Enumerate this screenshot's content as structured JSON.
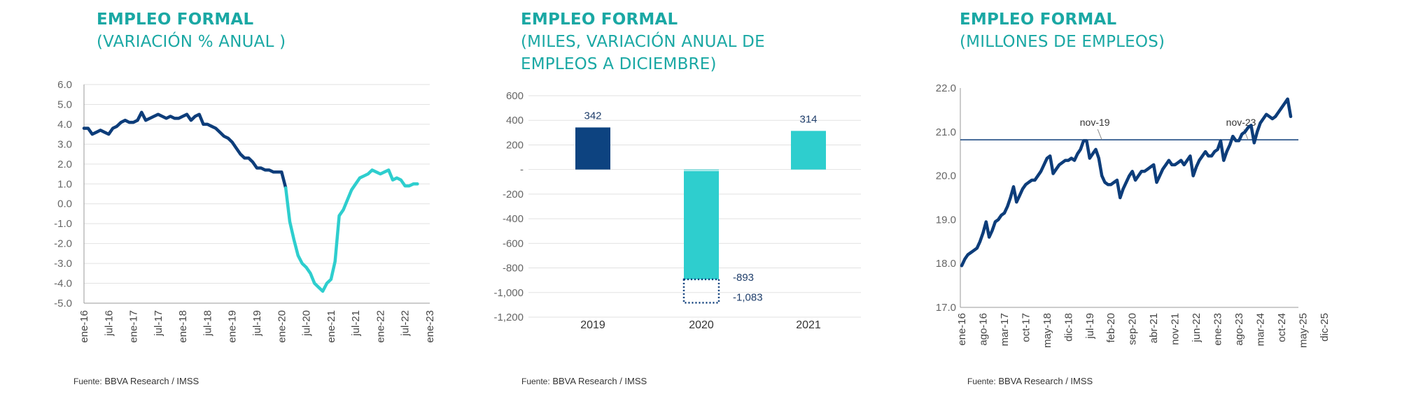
{
  "panels": [
    {
      "title": "EMPLEO FORMAL",
      "subtitle_lines": [
        "(VARIACIÓN % ANUAL )"
      ],
      "source_label": "Fuente:",
      "source_text": "BBVA Research / IMSS"
    },
    {
      "title": "EMPLEO FORMAL",
      "subtitle_lines": [
        "(MILES, VARIACIÓN ANUAL DE",
        "EMPLEOS A DICIEMBRE)"
      ],
      "source_label": "Fuente:",
      "source_text": "BBVA Research / IMSS"
    },
    {
      "title": "EMPLEO FORMAL",
      "subtitle_lines": [
        "(MILLONES DE EMPLEOS)"
      ],
      "source_label": "Fuente:",
      "source_text": "BBVA Research / IMSS"
    }
  ],
  "chart_data": [
    {
      "type": "line",
      "title": "EMPLEO FORMAL",
      "subtitle": "(VARIACIÓN % ANUAL )",
      "ylim": [
        -5.0,
        6.0
      ],
      "yticks": [
        "6.0",
        "5.0",
        "4.0",
        "3.0",
        "2.0",
        "1.0",
        "0.0",
        "-1.0",
        "-2.0",
        "-3.0",
        "-4.0",
        "-5.0"
      ],
      "xticks": [
        "ene-16",
        "jul-16",
        "ene-17",
        "jul-17",
        "ene-18",
        "jul-18",
        "ene-19",
        "jul-19",
        "ene-20",
        "jul-20",
        "ene-21",
        "jul-21",
        "ene-22",
        "jul-22",
        "ene-23"
      ],
      "grid": true,
      "series": [
        {
          "color": "#0d3d7a",
          "values": [
            3.8,
            3.8,
            3.5,
            3.6,
            3.7,
            3.6,
            3.5,
            3.8,
            3.9,
            4.1,
            4.2,
            4.1,
            4.1,
            4.2,
            4.6,
            4.2,
            4.3,
            4.4,
            4.5,
            4.4,
            4.3,
            4.4,
            4.3,
            4.3,
            4.4,
            4.5,
            4.2,
            4.4,
            4.5,
            4.0,
            4.0,
            3.9,
            3.8,
            3.6,
            3.4,
            3.3,
            3.1,
            2.8,
            2.5,
            2.3,
            2.3,
            2.1,
            1.8,
            1.8,
            1.7,
            1.7,
            1.6,
            1.6,
            1.6,
            0.8
          ]
        },
        {
          "color": "#2ecece",
          "values": [
            0.8,
            -0.9,
            -1.8,
            -2.6,
            -3.0,
            -3.2,
            -3.5,
            -4.0,
            -4.2,
            -4.4,
            -4.0,
            -3.8,
            -2.9,
            -0.6,
            -0.3,
            0.2,
            0.7,
            1.0,
            1.3,
            1.4,
            1.5,
            1.7,
            1.6,
            1.5,
            1.6,
            1.7,
            1.2,
            1.3,
            1.2,
            0.9,
            0.9,
            1.0,
            1.0
          ]
        }
      ]
    },
    {
      "type": "bar",
      "title": "EMPLEO FORMAL",
      "subtitle": "(MILES, VARIACIÓN ANUAL DE EMPLEOS A DICIEMBRE)",
      "categories": [
        "2019",
        "2020",
        "2021"
      ],
      "values": [
        342,
        -893,
        314
      ],
      "value_labels": [
        "342",
        "-893",
        "314"
      ],
      "bar_colors": [
        "#0d4380",
        "#2ecece",
        "#2ecece"
      ],
      "dotted_extension": {
        "category": "2020",
        "value": -1083,
        "label": "-1,083"
      },
      "ylim": [
        -1200,
        600
      ],
      "yticks": [
        "600",
        "400",
        "200",
        "-",
        "-200",
        "-400",
        "-600",
        "-800",
        "-1,000",
        "-1,200"
      ],
      "grid": true
    },
    {
      "type": "line",
      "title": "EMPLEO FORMAL",
      "subtitle": "(MILLONES DE EMPLEOS)",
      "ylim": [
        17.0,
        22.0
      ],
      "yticks": [
        "22.0",
        "21.0",
        "20.0",
        "19.0",
        "18.0",
        "17.0"
      ],
      "xticks": [
        "ene-16",
        "ago-16",
        "mar-17",
        "oct-17",
        "may-18",
        "dic-18",
        "jul-19",
        "feb-20",
        "sep-20",
        "abr-21",
        "nov-21",
        "jun-22",
        "ene-23",
        "ago-23",
        "mar-24",
        "oct-24",
        "may-25",
        "dic-25"
      ],
      "reference_line": 20.82,
      "annotations": [
        {
          "label": "nov-19",
          "x_index": 46,
          "value": 20.82
        },
        {
          "label": "nov-23",
          "x_index": 94,
          "value": 20.82
        }
      ],
      "series": [
        {
          "color": "#0d3d7a",
          "values": [
            17.95,
            18.1,
            18.2,
            18.25,
            18.3,
            18.35,
            18.5,
            18.7,
            18.95,
            18.6,
            18.75,
            18.95,
            19.0,
            19.1,
            19.15,
            19.3,
            19.5,
            19.75,
            19.4,
            19.55,
            19.7,
            19.8,
            19.85,
            19.9,
            19.9,
            20.0,
            20.1,
            20.25,
            20.4,
            20.45,
            20.05,
            20.15,
            20.25,
            20.3,
            20.35,
            20.35,
            20.4,
            20.35,
            20.5,
            20.6,
            20.8,
            20.8,
            20.4,
            20.5,
            20.6,
            20.4,
            20.0,
            19.85,
            19.8,
            19.8,
            19.85,
            19.9,
            19.5,
            19.7,
            19.85,
            20.0,
            20.1,
            19.9,
            20.0,
            20.1,
            20.1,
            20.15,
            20.2,
            20.25,
            19.85,
            20.0,
            20.15,
            20.25,
            20.35,
            20.25,
            20.25,
            20.3,
            20.35,
            20.25,
            20.35,
            20.45,
            20.0,
            20.2,
            20.35,
            20.45,
            20.55,
            20.45,
            20.45,
            20.55,
            20.6,
            20.8,
            20.35,
            20.55,
            20.7,
            20.9,
            20.8,
            20.8,
            20.95,
            21.0,
            21.1,
            21.15,
            20.75,
            21.0,
            21.2,
            21.3,
            21.4,
            21.35,
            21.3,
            21.35,
            21.45,
            21.55,
            21.65,
            21.75,
            21.35
          ]
        }
      ]
    }
  ]
}
